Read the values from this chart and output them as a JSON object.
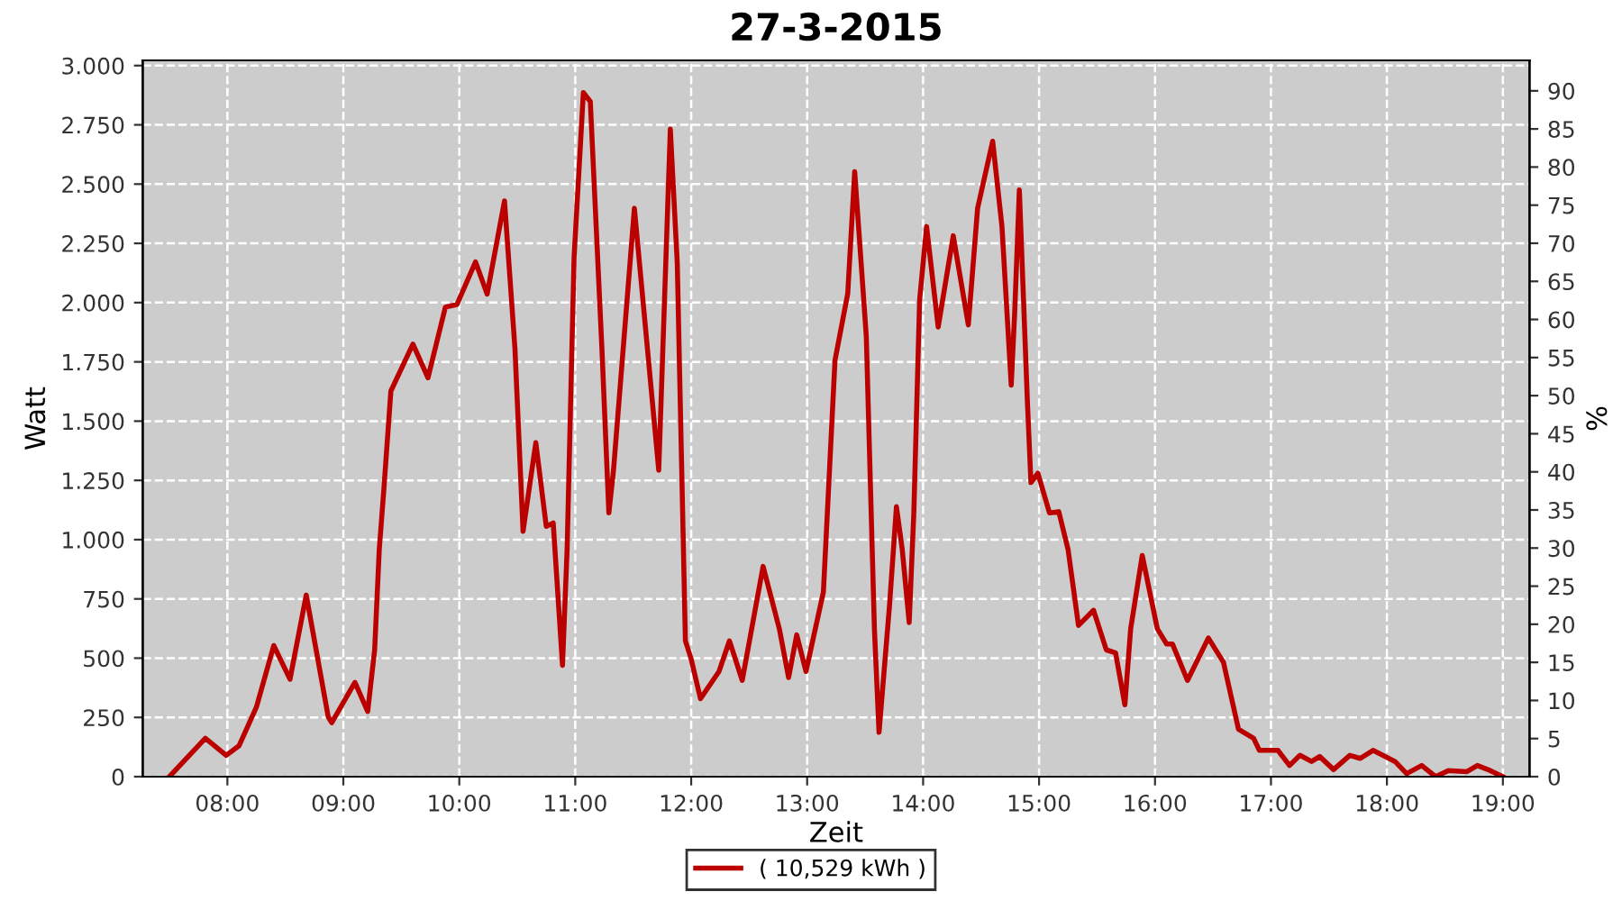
{
  "chart_data": {
    "type": "line",
    "title": "27-3-2015",
    "xlabel": "Zeit",
    "ylabel": "Watt",
    "y2label": "%",
    "x": [
      7.5,
      7.81,
      7.99,
      8.1,
      8.25,
      8.4,
      8.54,
      8.68,
      8.87,
      8.9,
      9.1,
      9.21,
      9.27,
      9.31,
      9.35,
      9.41,
      9.6,
      9.73,
      9.88,
      9.98,
      10.14,
      10.24,
      10.39,
      10.48,
      10.55,
      10.66,
      10.75,
      10.81,
      10.89,
      10.93,
      10.99,
      11.07,
      11.13,
      11.23,
      11.29,
      11.33,
      11.51,
      11.72,
      11.82,
      11.88,
      11.95,
      12.0,
      12.08,
      12.24,
      12.33,
      12.44,
      12.62,
      12.76,
      12.84,
      12.91,
      12.99,
      13.14,
      13.24,
      13.35,
      13.41,
      13.51,
      13.58,
      13.62,
      13.71,
      13.77,
      13.82,
      13.88,
      13.92,
      13.97,
      14.03,
      14.13,
      14.26,
      14.39,
      14.47,
      14.6,
      14.68,
      14.76,
      14.79,
      14.83,
      14.9,
      14.93,
      14.99,
      15.09,
      15.17,
      15.25,
      15.34,
      15.47,
      15.58,
      15.66,
      15.74,
      15.79,
      15.89,
      16.02,
      16.1,
      16.15,
      16.28,
      16.46,
      16.59,
      16.72,
      16.85,
      16.9,
      17.06,
      17.16,
      17.25,
      17.35,
      17.42,
      17.54,
      17.68,
      17.77,
      17.88,
      18.07,
      18.17,
      18.3,
      18.42,
      18.53,
      18.69,
      18.78,
      18.89,
      19.0
    ],
    "series": [
      {
        "name": "( 10,529 kWh )",
        "color": "#bb0000",
        "values": [
          0,
          162,
          90,
          130,
          293,
          553,
          411,
          766,
          252,
          228,
          398,
          275,
          535,
          959,
          1216,
          1627,
          1825,
          1683,
          1981,
          1992,
          2172,
          2036,
          2429,
          1806,
          1035,
          1409,
          1056,
          1070,
          470,
          959,
          2192,
          2886,
          2848,
          1806,
          1113,
          1293,
          2398,
          1293,
          2732,
          2165,
          573,
          496,
          329,
          444,
          573,
          406,
          887,
          624,
          418,
          598,
          444,
          779,
          1756,
          2038,
          2552,
          1859,
          624,
          187,
          720,
          1139,
          959,
          650,
          1113,
          2012,
          2321,
          1897,
          2282,
          1906,
          2398,
          2681,
          2321,
          1652,
          1960,
          2475,
          1575,
          1241,
          1280,
          1113,
          1118,
          959,
          638,
          702,
          535,
          522,
          303,
          624,
          933,
          624,
          560,
          560,
          406,
          585,
          483,
          200,
          162,
          111,
          111,
          47,
          90,
          64,
          85,
          30,
          90,
          77,
          111,
          64,
          13,
          47,
          0,
          26,
          21,
          47,
          26,
          0
        ]
      }
    ],
    "xlim": [
      7.27,
      19.23
    ],
    "xticks": [
      {
        "value": 8,
        "label": "08:00"
      },
      {
        "value": 9,
        "label": "09:00"
      },
      {
        "value": 10,
        "label": "10:00"
      },
      {
        "value": 11,
        "label": "11:00"
      },
      {
        "value": 12,
        "label": "12:00"
      },
      {
        "value": 13,
        "label": "13:00"
      },
      {
        "value": 14,
        "label": "14:00"
      },
      {
        "value": 15,
        "label": "15:00"
      },
      {
        "value": 16,
        "label": "16:00"
      },
      {
        "value": 17,
        "label": "17:00"
      },
      {
        "value": 18,
        "label": "18:00"
      },
      {
        "value": 19,
        "label": "19:00"
      }
    ],
    "ylim": [
      0,
      3022
    ],
    "yticks": [
      0,
      250,
      500,
      750,
      {
        "value": 1000,
        "label": "1.000"
      },
      {
        "value": 1250,
        "label": "1.250"
      },
      {
        "value": 1500,
        "label": "1.500"
      },
      {
        "value": 1750,
        "label": "1.750"
      },
      {
        "value": 2000,
        "label": "2.000"
      },
      {
        "value": 2250,
        "label": "2.250"
      },
      {
        "value": 2500,
        "label": "2.500"
      },
      {
        "value": 2750,
        "label": "2.750"
      },
      {
        "value": 3000,
        "label": "3.000"
      }
    ],
    "y2lim": [
      0,
      94
    ],
    "y2ticks": [
      0,
      5,
      10,
      15,
      20,
      25,
      30,
      35,
      40,
      45,
      50,
      55,
      60,
      65,
      70,
      75,
      80,
      85,
      90
    ],
    "grid": true,
    "legend": "bottom",
    "marker": "none",
    "line_style": "solid"
  }
}
